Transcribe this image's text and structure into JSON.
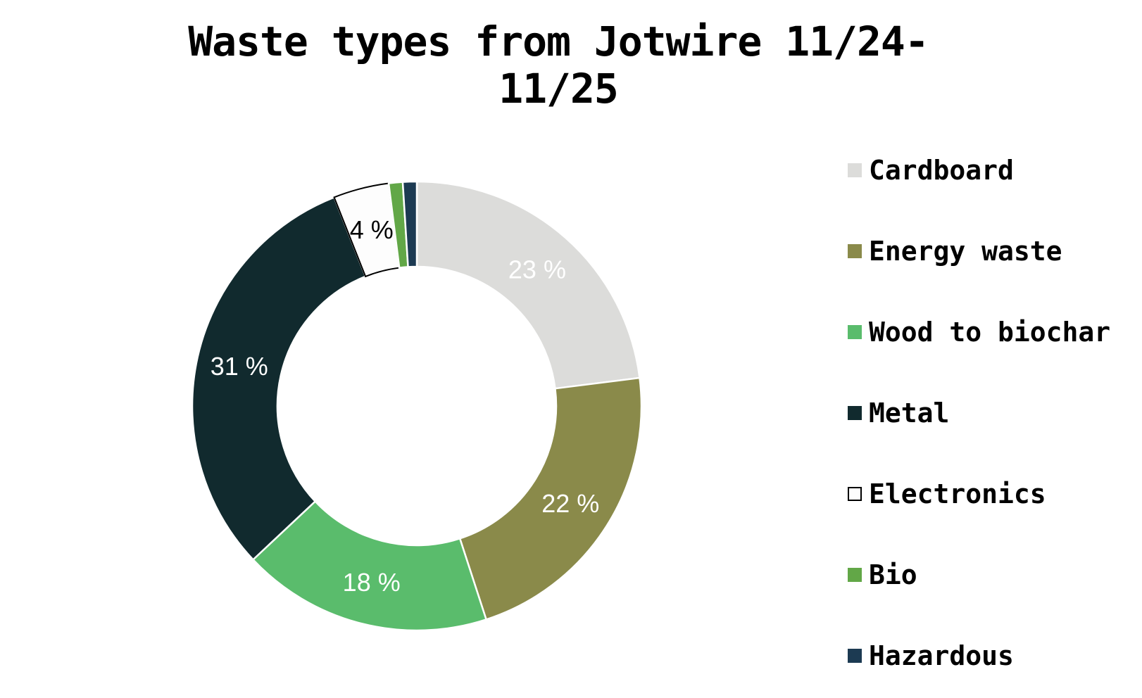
{
  "header": {
    "title": "Waste types from Jotwire 11/24-11/25"
  },
  "chart_data": {
    "type": "pie",
    "subtype": "donut",
    "title": "Waste types from Jotwire 11/24-11/25",
    "unit": "%",
    "legend_position": "right",
    "start_angle_deg": 0,
    "direction": "clockwise",
    "donut_hole_ratio": 0.62,
    "total": 100,
    "categories": [
      "Cardboard",
      "Energy waste",
      "Wood to biochar",
      "Metal",
      "Electronics",
      "Bio",
      "Hazardous"
    ],
    "values": [
      23,
      22,
      18,
      31,
      4,
      1,
      1
    ],
    "series": [
      {
        "name": "Cardboard",
        "value": 23,
        "color": "#DCDCDA",
        "data_label": "23 %",
        "data_label_color": "#FFFFFF",
        "border_color": "#FFFFFF",
        "swatch_border_color": ""
      },
      {
        "name": "Energy waste",
        "value": 22,
        "color": "#8A8A4A",
        "data_label": "22 %",
        "data_label_color": "#FFFFFF",
        "border_color": "#FFFFFF",
        "swatch_border_color": ""
      },
      {
        "name": "Wood to biochar",
        "value": 18,
        "color": "#5ABC6C",
        "data_label": "18 %",
        "data_label_color": "#FFFFFF",
        "border_color": "#FFFFFF",
        "swatch_border_color": ""
      },
      {
        "name": "Metal",
        "value": 31,
        "color": "#112A2E",
        "data_label": "31 %",
        "data_label_color": "#FFFFFF",
        "border_color": "#FFFFFF",
        "swatch_border_color": ""
      },
      {
        "name": "Electronics",
        "value": 4,
        "color": "#FDFDFD",
        "data_label": "4 %",
        "data_label_color": "#000000",
        "border_color": "#000000",
        "swatch_border_color": "#000000"
      },
      {
        "name": "Bio",
        "value": 1,
        "color": "#62A747",
        "data_label": "",
        "data_label_color": "",
        "border_color": "#FFFFFF",
        "swatch_border_color": ""
      },
      {
        "name": "Hazardous",
        "value": 1,
        "color": "#1C3A52",
        "data_label": "",
        "data_label_color": "",
        "border_color": "#FFFFFF",
        "swatch_border_color": ""
      }
    ]
  }
}
